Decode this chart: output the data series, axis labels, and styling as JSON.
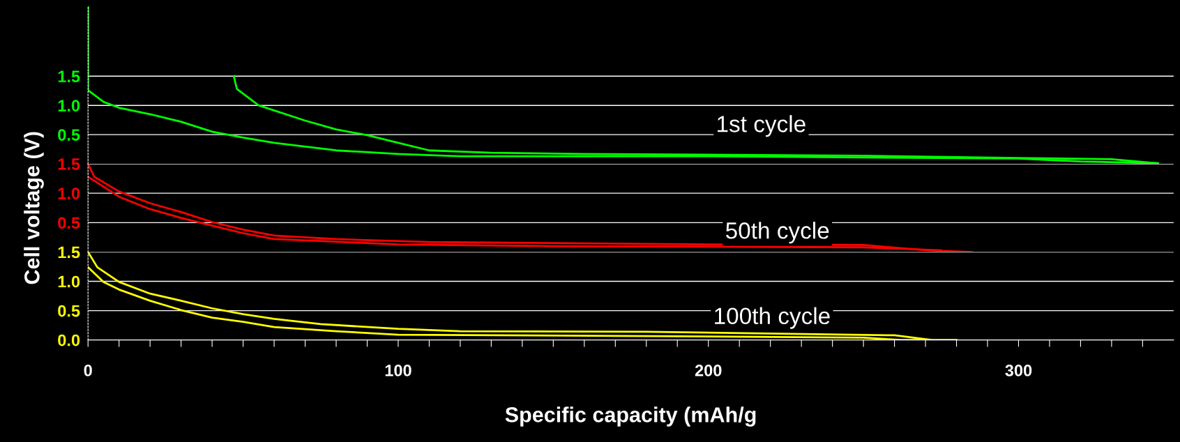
{
  "chart_data": [
    {
      "type": "line",
      "xlim": [
        0,
        350
      ],
      "ylim": [
        0,
        2.7
      ],
      "yticks": [
        {
          "value": 0.5,
          "label": "0.5"
        },
        {
          "value": 1,
          "label": "1.0"
        },
        {
          "value": 1.5,
          "label": "1.5"
        }
      ],
      "tick_labels": "y",
      "grid": "y",
      "legend": false,
      "annotations": [
        "1st cycle"
      ],
      "series": [
        {
          "color": "#00ff00",
          "x": [
            0,
            0,
            0,
            5,
            10,
            20,
            30,
            40,
            50,
            60,
            80,
            100,
            120,
            200,
            300,
            320,
            345
          ],
          "values": [
            2.69,
            1.77,
            1.26,
            1.06,
            0.96,
            0.85,
            0.72,
            0.55,
            0.45,
            0.36,
            0.23,
            0.17,
            0.13,
            0.13,
            0.09,
            0.04,
            0.01
          ]
        },
        {
          "color": "#00ff00",
          "x": [
            47,
            48,
            55,
            70,
            80,
            90,
            100,
            110,
            130,
            160,
            250,
            300,
            330,
            345
          ],
          "values": [
            1.5,
            1.28,
            1.0,
            0.74,
            0.59,
            0.49,
            0.36,
            0.23,
            0.19,
            0.17,
            0.14,
            0.1,
            0.08,
            0.01
          ]
        }
      ]
    },
    {
      "type": "line",
      "xlim": [
        0,
        350
      ],
      "ylim": [
        0,
        1.5
      ],
      "yticks": [
        {
          "value": 0.5,
          "label": "0.5"
        },
        {
          "value": 1,
          "label": "1.0"
        },
        {
          "value": 1.5,
          "label": "1.5"
        }
      ],
      "tick_labels": "y",
      "grid": "y",
      "legend": false,
      "ylabel": "Cell voltage (V)",
      "annotations": [
        "50th cycle"
      ],
      "series": [
        {
          "color": "#ff0000",
          "x": [
            0,
            2,
            10,
            20,
            30,
            40,
            50,
            60,
            80,
            110,
            200,
            250,
            270,
            285
          ],
          "values": [
            1.5,
            1.28,
            1.03,
            0.83,
            0.68,
            0.51,
            0.38,
            0.28,
            0.22,
            0.17,
            0.13,
            0.12,
            0.03,
            0.0
          ]
        },
        {
          "color": "#ff0000",
          "x": [
            0,
            10,
            20,
            30,
            40,
            50,
            60,
            100,
            150,
            250,
            275
          ],
          "values": [
            1.28,
            0.94,
            0.73,
            0.58,
            0.45,
            0.32,
            0.22,
            0.13,
            0.1,
            0.08,
            0.03
          ]
        }
      ]
    },
    {
      "type": "line",
      "xlim": [
        0,
        350
      ],
      "ylim": [
        0,
        1.5
      ],
      "yticks": [
        {
          "value": 0,
          "label": "0.0"
        },
        {
          "value": 0.5,
          "label": "0.5"
        },
        {
          "value": 1,
          "label": "1.0"
        },
        {
          "value": 1.5,
          "label": "1.5"
        }
      ],
      "grid": "y",
      "legend": false,
      "xlabel": "Specific capacity (mAh/g",
      "xticks": [
        0,
        {
          "value": 10,
          "label": null
        },
        {
          "value": 20,
          "label": null
        },
        {
          "value": 30,
          "label": null
        },
        {
          "value": 40,
          "label": null
        },
        {
          "value": 50,
          "label": null
        },
        {
          "value": 60,
          "label": null
        },
        {
          "value": 70,
          "label": null
        },
        {
          "value": 80,
          "label": null
        },
        {
          "value": 90,
          "label": null
        },
        100,
        {
          "value": 110,
          "label": null
        },
        {
          "value": 120,
          "label": null
        },
        {
          "value": 130,
          "label": null
        },
        {
          "value": 140,
          "label": null
        },
        {
          "value": 150,
          "label": null
        },
        {
          "value": 160,
          "label": null
        },
        {
          "value": 170,
          "label": null
        },
        {
          "value": 180,
          "label": null
        },
        {
          "value": 190,
          "label": null
        },
        200,
        {
          "value": 210,
          "label": null
        },
        {
          "value": 220,
          "label": null
        },
        {
          "value": 230,
          "label": null
        },
        {
          "value": 240,
          "label": null
        },
        {
          "value": 250,
          "label": null
        },
        {
          "value": 260,
          "label": null
        },
        {
          "value": 270,
          "label": null
        },
        {
          "value": 280,
          "label": null
        },
        {
          "value": 290,
          "label": null
        },
        300,
        {
          "value": 310,
          "label": null
        },
        {
          "value": 320,
          "label": null
        },
        {
          "value": 330,
          "label": null
        },
        {
          "value": 340,
          "label": null
        }
      ],
      "annotations": [
        "100th cycle"
      ],
      "series": [
        {
          "color": "#ffff00",
          "x": [
            0,
            3,
            10,
            20,
            30,
            40,
            50,
            60,
            75,
            100,
            120,
            180,
            260,
            272,
            280
          ],
          "values": [
            1.5,
            1.24,
            0.99,
            0.79,
            0.67,
            0.54,
            0.44,
            0.36,
            0.27,
            0.19,
            0.15,
            0.14,
            0.08,
            0.0,
            0.0
          ]
        },
        {
          "color": "#ffff00",
          "x": [
            0,
            5,
            10,
            20,
            30,
            40,
            50,
            60,
            80,
            100,
            200,
            250,
            262,
            270
          ],
          "values": [
            1.24,
            0.99,
            0.86,
            0.67,
            0.51,
            0.38,
            0.31,
            0.22,
            0.15,
            0.09,
            0.06,
            0.04,
            0.0,
            0.0
          ]
        }
      ]
    }
  ]
}
